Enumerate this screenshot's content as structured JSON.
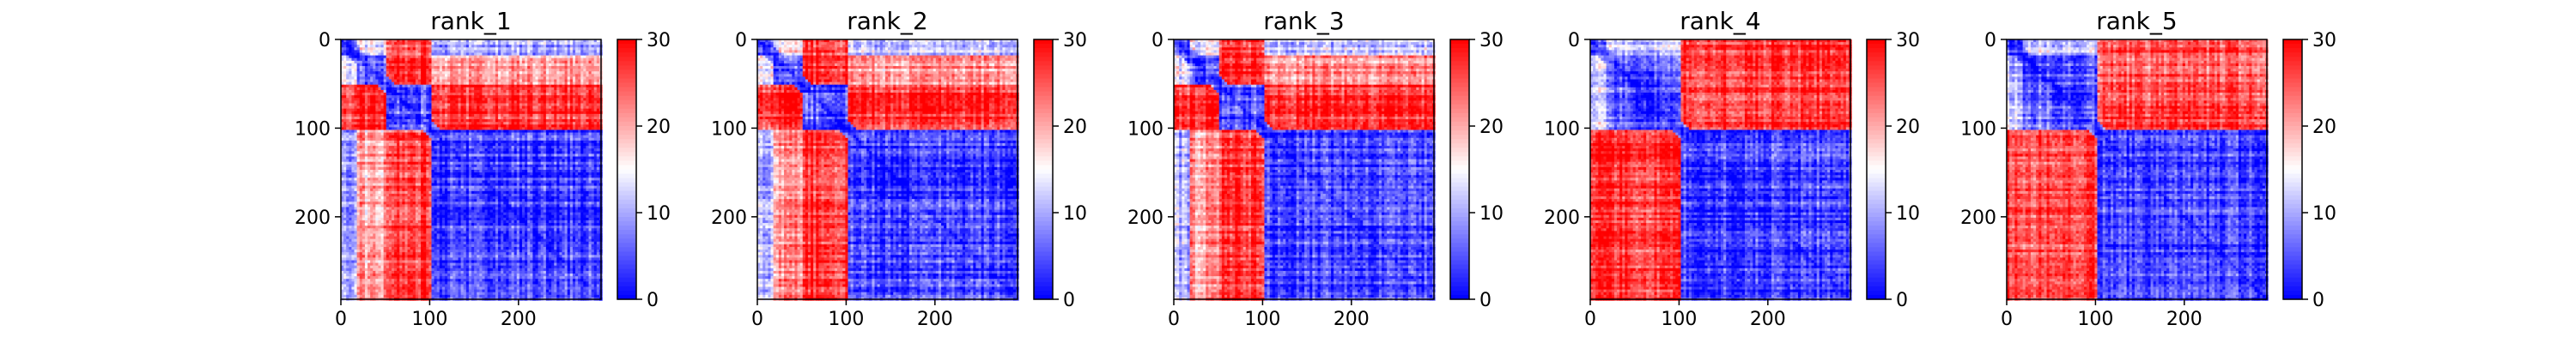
{
  "figure": {
    "background": "#ffffff"
  },
  "colormap": {
    "name": "bwr",
    "low": "#0000ff",
    "mid": "#ffffff",
    "high": "#ff0000"
  },
  "chart_data": [
    {
      "type": "heatmap",
      "title": "rank_1",
      "xlim": [
        0,
        293
      ],
      "ylim": [
        293,
        0
      ],
      "xticks": [
        0,
        100,
        200
      ],
      "yticks": [
        0,
        100,
        200
      ],
      "colorbar": {
        "range": [
          0,
          30
        ],
        "ticks": [
          0,
          10,
          20,
          30
        ]
      },
      "blocks": [
        [
          0,
          18
        ],
        [
          18,
          50
        ],
        [
          50,
          100
        ],
        [
          100,
          293
        ]
      ],
      "block_matrix": [
        [
          4,
          14,
          26,
          10
        ],
        [
          14,
          5,
          28,
          20
        ],
        [
          26,
          28,
          5,
          27
        ],
        [
          10,
          20,
          27,
          4
        ]
      ]
    },
    {
      "type": "heatmap",
      "title": "rank_2",
      "xlim": [
        0,
        293
      ],
      "ylim": [
        293,
        0
      ],
      "xticks": [
        0,
        100,
        200
      ],
      "yticks": [
        0,
        100,
        200
      ],
      "colorbar": {
        "range": [
          0,
          30
        ],
        "ticks": [
          0,
          10,
          20,
          30
        ]
      },
      "blocks": [
        [
          0,
          18
        ],
        [
          18,
          50
        ],
        [
          50,
          100
        ],
        [
          100,
          293
        ]
      ],
      "block_matrix": [
        [
          4,
          15,
          26,
          11
        ],
        [
          15,
          5,
          28,
          21
        ],
        [
          26,
          28,
          5,
          27
        ],
        [
          11,
          21,
          27,
          4
        ]
      ]
    },
    {
      "type": "heatmap",
      "title": "rank_3",
      "xlim": [
        0,
        293
      ],
      "ylim": [
        293,
        0
      ],
      "xticks": [
        0,
        100,
        200
      ],
      "yticks": [
        0,
        100,
        200
      ],
      "colorbar": {
        "range": [
          0,
          30
        ],
        "ticks": [
          0,
          10,
          20,
          30
        ]
      },
      "blocks": [
        [
          0,
          18
        ],
        [
          18,
          50
        ],
        [
          50,
          100
        ],
        [
          100,
          293
        ]
      ],
      "block_matrix": [
        [
          4,
          14,
          27,
          11
        ],
        [
          14,
          5,
          28,
          21
        ],
        [
          27,
          28,
          5,
          27
        ],
        [
          11,
          21,
          27,
          4
        ]
      ]
    },
    {
      "type": "heatmap",
      "title": "rank_4",
      "xlim": [
        0,
        293
      ],
      "ylim": [
        293,
        0
      ],
      "xticks": [
        0,
        100,
        200
      ],
      "yticks": [
        0,
        100,
        200
      ],
      "colorbar": {
        "range": [
          0,
          30
        ],
        "ticks": [
          0,
          10,
          20,
          30
        ]
      },
      "blocks": [
        [
          0,
          18
        ],
        [
          18,
          50
        ],
        [
          50,
          100
        ],
        [
          100,
          293
        ]
      ],
      "block_matrix": [
        [
          4,
          12,
          12,
          27
        ],
        [
          12,
          5,
          6,
          27
        ],
        [
          12,
          6,
          4,
          27
        ],
        [
          27,
          27,
          27,
          4
        ]
      ]
    },
    {
      "type": "heatmap",
      "title": "rank_5",
      "xlim": [
        0,
        293
      ],
      "ylim": [
        293,
        0
      ],
      "xticks": [
        0,
        100,
        200
      ],
      "yticks": [
        0,
        100,
        200
      ],
      "colorbar": {
        "range": [
          0,
          30
        ],
        "ticks": [
          0,
          10,
          20,
          30
        ]
      },
      "blocks": [
        [
          0,
          18
        ],
        [
          18,
          50
        ],
        [
          50,
          100
        ],
        [
          100,
          293
        ]
      ],
      "block_matrix": [
        [
          4,
          12,
          12,
          26
        ],
        [
          12,
          5,
          6,
          25
        ],
        [
          12,
          6,
          4,
          26
        ],
        [
          26,
          25,
          26,
          4
        ]
      ]
    }
  ]
}
